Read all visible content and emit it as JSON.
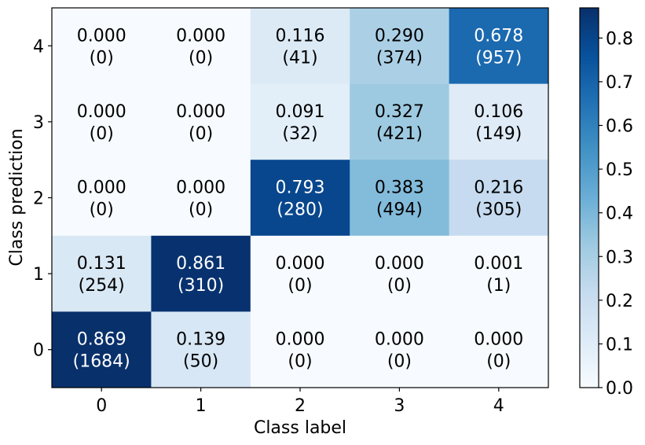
{
  "chart_data": {
    "type": "heatmap",
    "xlabel": "Class label",
    "ylabel": "Class prediction",
    "x_categories": [
      "0",
      "1",
      "2",
      "3",
      "4"
    ],
    "y_categories": [
      "4",
      "3",
      "2",
      "1",
      "0"
    ],
    "cells": [
      [
        {
          "value": 0.0,
          "count": 0
        },
        {
          "value": 0.0,
          "count": 0
        },
        {
          "value": 0.116,
          "count": 41
        },
        {
          "value": 0.29,
          "count": 374
        },
        {
          "value": 0.678,
          "count": 957
        }
      ],
      [
        {
          "value": 0.0,
          "count": 0
        },
        {
          "value": 0.0,
          "count": 0
        },
        {
          "value": 0.091,
          "count": 32
        },
        {
          "value": 0.327,
          "count": 421
        },
        {
          "value": 0.106,
          "count": 149
        }
      ],
      [
        {
          "value": 0.0,
          "count": 0
        },
        {
          "value": 0.0,
          "count": 0
        },
        {
          "value": 0.793,
          "count": 280
        },
        {
          "value": 0.383,
          "count": 494
        },
        {
          "value": 0.216,
          "count": 305
        }
      ],
      [
        {
          "value": 0.131,
          "count": 254
        },
        {
          "value": 0.861,
          "count": 310
        },
        {
          "value": 0.0,
          "count": 0
        },
        {
          "value": 0.0,
          "count": 0
        },
        {
          "value": 0.001,
          "count": 1
        }
      ],
      [
        {
          "value": 0.869,
          "count": 1684
        },
        {
          "value": 0.139,
          "count": 50
        },
        {
          "value": 0.0,
          "count": 0
        },
        {
          "value": 0.0,
          "count": 0
        },
        {
          "value": 0.0,
          "count": 0
        }
      ]
    ],
    "colorbar": {
      "colormap": "Blues",
      "range": [
        0.0,
        0.869
      ],
      "ticks": [
        "0.0",
        "0.1",
        "0.2",
        "0.3",
        "0.4",
        "0.5",
        "0.6",
        "0.7",
        "0.8"
      ]
    },
    "grid": false
  }
}
